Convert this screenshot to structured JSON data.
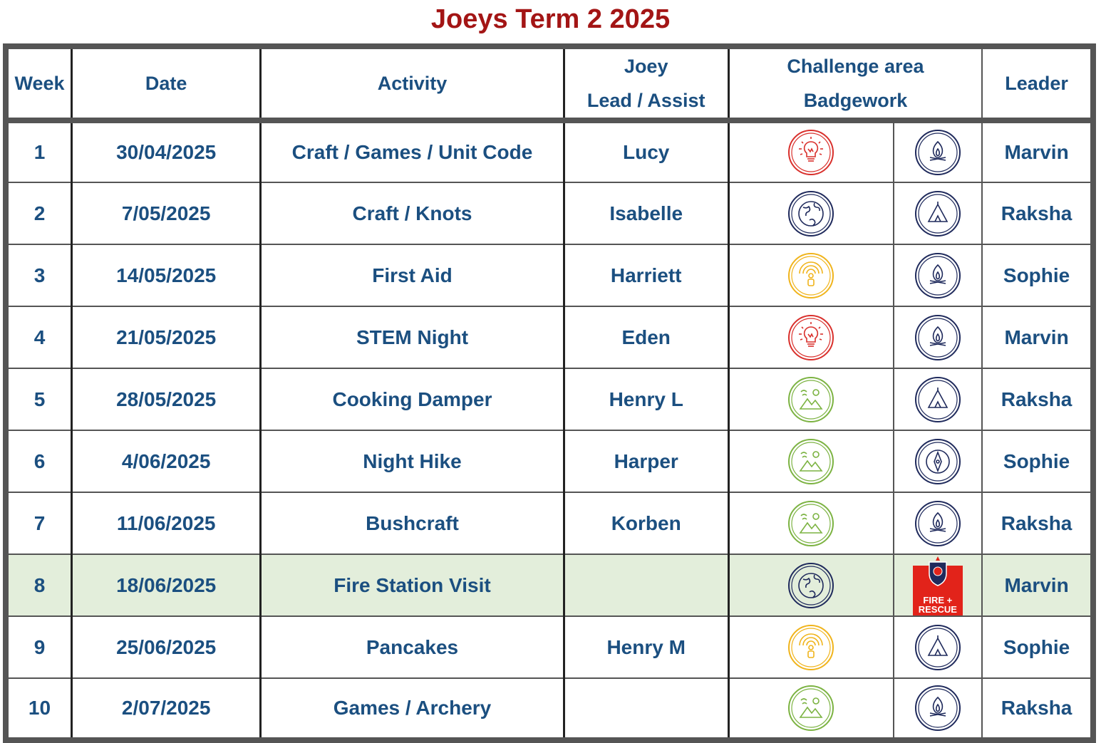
{
  "title": "Joeys Term 2 2025",
  "headers": {
    "week": "Week",
    "date": "Date",
    "activity": "Activity",
    "joey_line1": "Joey",
    "joey_line2": "Lead / Assist",
    "challenge_line1": "Challenge area",
    "challenge_line2": "Badgework",
    "leader": "Leader"
  },
  "colors": {
    "title": "#a31515",
    "text": "#1b4f80",
    "border": "#555555",
    "highlight_row": "#e3eedb",
    "creative_icon": "#d9302c",
    "community_icon": "#1f2a5c",
    "personal_icon": "#f0b41c",
    "outdoors_icon": "#7cb342",
    "badge_icon": "#1f2a5c",
    "fire_rescue": "#e2231a"
  },
  "rows": [
    {
      "week": "1",
      "date": "30/04/2025",
      "activity": "Craft / Games / Unit Code",
      "joey": "Lucy",
      "challenge_icon": "lightbulb-icon",
      "badge_icon": "campfire-icon",
      "leader": "Marvin",
      "highlight": false
    },
    {
      "week": "2",
      "date": "7/05/2025",
      "activity": "Craft / Knots",
      "joey": "Isabelle",
      "challenge_icon": "globe-icon",
      "badge_icon": "tent-icon",
      "leader": "Raksha",
      "highlight": false
    },
    {
      "week": "3",
      "date": "14/05/2025",
      "activity": "First Aid",
      "joey": "Harriett",
      "challenge_icon": "person-signal-icon",
      "badge_icon": "campfire-icon",
      "leader": "Sophie",
      "highlight": false
    },
    {
      "week": "4",
      "date": "21/05/2025",
      "activity": "STEM Night",
      "joey": "Eden",
      "challenge_icon": "lightbulb-icon",
      "badge_icon": "campfire-icon",
      "leader": "Marvin",
      "highlight": false
    },
    {
      "week": "5",
      "date": "28/05/2025",
      "activity": "Cooking Damper",
      "joey": "Henry L",
      "challenge_icon": "mountains-icon",
      "badge_icon": "tent-icon",
      "leader": "Raksha",
      "highlight": false
    },
    {
      "week": "6",
      "date": "4/06/2025",
      "activity": "Night Hike",
      "joey": "Harper",
      "challenge_icon": "mountains-icon",
      "badge_icon": "compass-icon",
      "leader": "Sophie",
      "highlight": false
    },
    {
      "week": "7",
      "date": "11/06/2025",
      "activity": "Bushcraft",
      "joey": "Korben",
      "challenge_icon": "mountains-icon",
      "badge_icon": "campfire-icon",
      "leader": "Raksha",
      "highlight": false
    },
    {
      "week": "8",
      "date": "18/06/2025",
      "activity": "Fire Station Visit",
      "joey": "",
      "challenge_icon": "globe-icon",
      "badge_icon": "fire-rescue-logo",
      "leader": "Marvin",
      "highlight": true
    },
    {
      "week": "9",
      "date": "25/06/2025",
      "activity": "Pancakes",
      "joey": "Henry M",
      "challenge_icon": "person-signal-icon",
      "badge_icon": "tent-icon",
      "leader": "Sophie",
      "highlight": false
    },
    {
      "week": "10",
      "date": "2/07/2025",
      "activity": "Games / Archery",
      "joey": "",
      "challenge_icon": "mountains-icon",
      "badge_icon": "campfire-icon",
      "leader": "Raksha",
      "highlight": false
    }
  ],
  "fire_rescue_logo": {
    "line1": "FIRE +",
    "line2": "RESCUE"
  }
}
